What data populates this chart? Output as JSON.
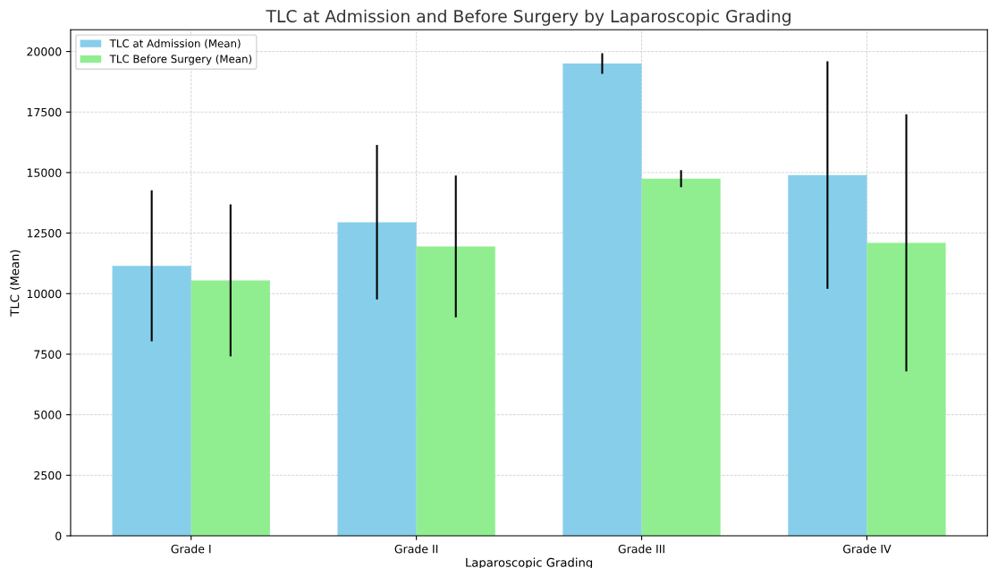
{
  "chart_data": {
    "type": "bar",
    "title": "TLC at Admission and Before Surgery by Laparoscopic Grading",
    "xlabel": "Laparoscopic Grading",
    "ylabel": "TLC (Mean)",
    "categories": [
      "Grade I",
      "Grade II",
      "Grade III",
      "Grade IV"
    ],
    "series": [
      {
        "name": "TLC at Admission (Mean)",
        "color": "#87ceeb",
        "values": [
          11150,
          12950,
          19500,
          14900
        ],
        "errors": [
          3120,
          3190,
          425,
          4700
        ]
      },
      {
        "name": "TLC Before Surgery (Mean)",
        "color": "#90ee90",
        "values": [
          10550,
          11950,
          14750,
          12100
        ],
        "errors": [
          3140,
          2930,
          350,
          5310
        ]
      }
    ],
    "ylim": [
      0,
      20900
    ],
    "yticks": [
      0,
      2500,
      5000,
      7500,
      10000,
      12500,
      15000,
      17500,
      20000
    ],
    "grid": true,
    "legend": "top left"
  }
}
